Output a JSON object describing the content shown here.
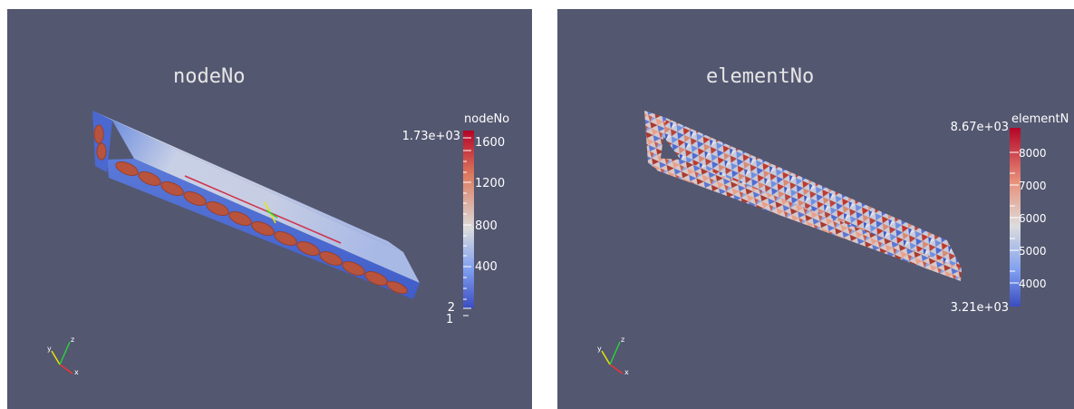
{
  "left_view": {
    "title": "nodeNo",
    "colorbar": {
      "title": "nodeNo",
      "range_max": "1.73e+03",
      "range_min": "2",
      "bottom_label": "1",
      "tick_labels": [
        "1600",
        "1200",
        "800",
        "400"
      ]
    }
  },
  "right_view": {
    "title": "elementNo",
    "colorbar": {
      "title": "elementN",
      "range_max": "8.67e+03",
      "range_min": "3.21e+03",
      "tick_labels": [
        "8000",
        "7000",
        "6000",
        "5000",
        "4000"
      ]
    }
  },
  "axes": {
    "x": "x",
    "y": "y",
    "z": "z"
  },
  "colors": {
    "background": "#535770",
    "colormap_low": "#3b4cc0",
    "colormap_mid": "#dddddd",
    "colormap_high": "#b40426"
  }
}
